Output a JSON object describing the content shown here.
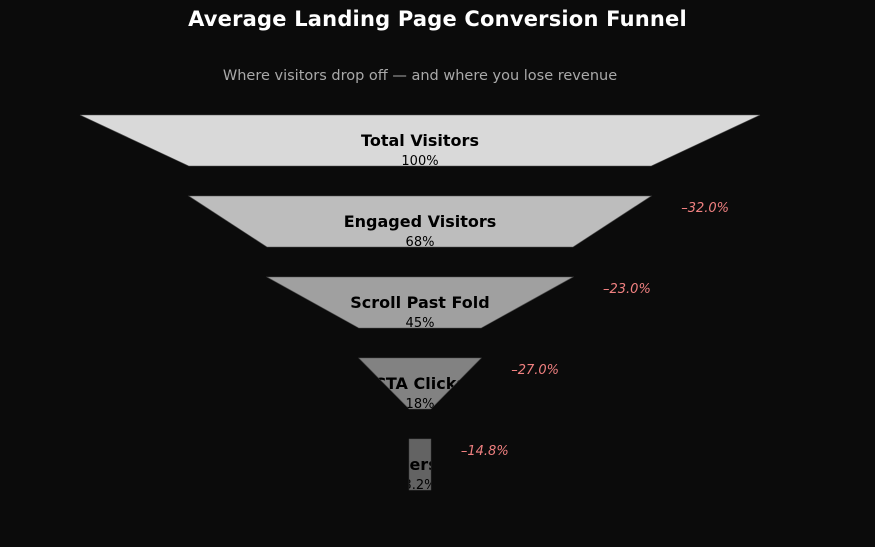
{
  "chart_data": {
    "type": "funnel",
    "title": "Average Landing Page Conversion Funnel",
    "subtitle": "Where visitors drop off — and where you lose revenue",
    "stages": [
      {
        "name": "Total Visitors",
        "value_label": "100%",
        "value": 100,
        "color": "#d9d9d9"
      },
      {
        "name": "Engaged Visitors",
        "value_label": "68%",
        "value": 68,
        "color": "#bdbdbd"
      },
      {
        "name": "Scroll Past Fold",
        "value_label": "45%",
        "value": 45,
        "color": "#a0a0a0"
      },
      {
        "name": "CTA Clicks",
        "value_label": "18%",
        "value": 18,
        "color": "#828282"
      },
      {
        "name": "Conversions",
        "value_label": "3.2%",
        "value": 3.2,
        "color": "#636363"
      }
    ],
    "dropoffs": [
      "–32.0%",
      "–23.0%",
      "–27.0%",
      "–14.8%"
    ],
    "dropoff_color": "#f08080",
    "label_color": "#000000",
    "background": "#0b0b0b"
  }
}
